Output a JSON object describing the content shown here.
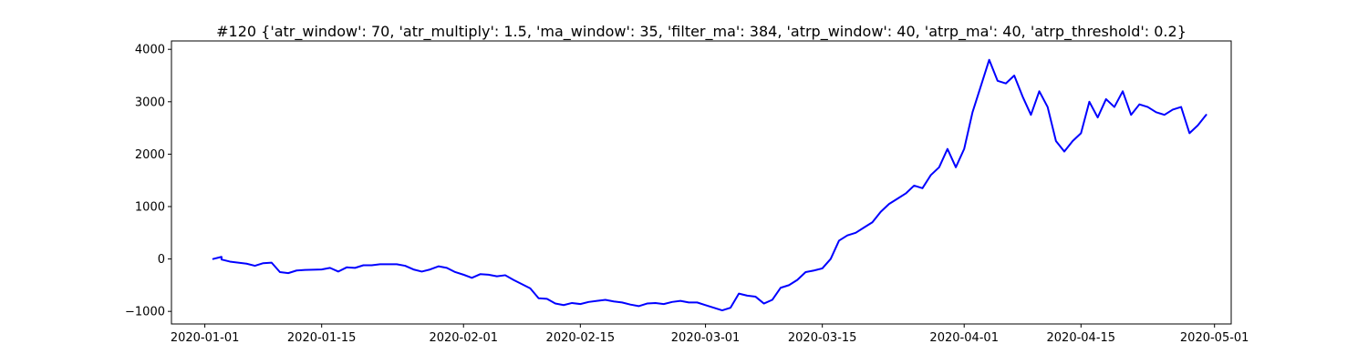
{
  "chart_data": {
    "type": "line",
    "title": "#120 {'atr_window': 70, 'atr_multiply': 1.5, 'ma_window': 35, 'filter_ma': 384, 'atrp_window': 40, 'atrp_ma': 40, 'atrp_threshold': 0.2}",
    "xlabel": "",
    "ylabel": "",
    "x_type": "date",
    "xlim": [
      "2019-12-28",
      "2020-05-03"
    ],
    "ylim": [
      -1240,
      4160
    ],
    "x_ticks": [
      "2020-01-01",
      "2020-01-15",
      "2020-02-01",
      "2020-02-15",
      "2020-03-01",
      "2020-03-15",
      "2020-04-01",
      "2020-04-15",
      "2020-05-01"
    ],
    "y_ticks": [
      -1000,
      0,
      1000,
      2000,
      3000,
      4000
    ],
    "grid": false,
    "legend": "none",
    "line_color": "#0000ff",
    "series": [
      {
        "points": [
          [
            "2020-01-02",
            0
          ],
          [
            "2020-01-03",
            40
          ],
          [
            "2020-01-03",
            -10
          ],
          [
            "2020-01-04",
            -50
          ],
          [
            "2020-01-06",
            -90
          ],
          [
            "2020-01-07",
            -130
          ],
          [
            "2020-01-08",
            -80
          ],
          [
            "2020-01-09",
            -70
          ],
          [
            "2020-01-10",
            -250
          ],
          [
            "2020-01-11",
            -270
          ],
          [
            "2020-01-12",
            -220
          ],
          [
            "2020-01-13",
            -210
          ],
          [
            "2020-01-15",
            -200
          ],
          [
            "2020-01-16",
            -170
          ],
          [
            "2020-01-17",
            -240
          ],
          [
            "2020-01-18",
            -160
          ],
          [
            "2020-01-19",
            -170
          ],
          [
            "2020-01-20",
            -120
          ],
          [
            "2020-01-21",
            -120
          ],
          [
            "2020-01-22",
            -100
          ],
          [
            "2020-01-24",
            -100
          ],
          [
            "2020-01-25",
            -130
          ],
          [
            "2020-01-26",
            -200
          ],
          [
            "2020-01-27",
            -240
          ],
          [
            "2020-01-28",
            -200
          ],
          [
            "2020-01-29",
            -140
          ],
          [
            "2020-01-30",
            -170
          ],
          [
            "2020-01-31",
            -250
          ],
          [
            "2020-02-01",
            -300
          ],
          [
            "2020-02-02",
            -360
          ],
          [
            "2020-02-03",
            -290
          ],
          [
            "2020-02-04",
            -300
          ],
          [
            "2020-02-05",
            -330
          ],
          [
            "2020-02-06",
            -310
          ],
          [
            "2020-02-07",
            -400
          ],
          [
            "2020-02-08",
            -480
          ],
          [
            "2020-02-09",
            -560
          ],
          [
            "2020-02-10",
            -750
          ],
          [
            "2020-02-11",
            -760
          ],
          [
            "2020-02-12",
            -850
          ],
          [
            "2020-02-13",
            -880
          ],
          [
            "2020-02-14",
            -840
          ],
          [
            "2020-02-15",
            -860
          ],
          [
            "2020-02-16",
            -820
          ],
          [
            "2020-02-17",
            -800
          ],
          [
            "2020-02-18",
            -780
          ],
          [
            "2020-02-19",
            -810
          ],
          [
            "2020-02-20",
            -830
          ],
          [
            "2020-02-21",
            -870
          ],
          [
            "2020-02-22",
            -900
          ],
          [
            "2020-02-23",
            -850
          ],
          [
            "2020-02-24",
            -840
          ],
          [
            "2020-02-25",
            -860
          ],
          [
            "2020-02-26",
            -820
          ],
          [
            "2020-02-27",
            -800
          ],
          [
            "2020-02-28",
            -830
          ],
          [
            "2020-02-29",
            -830
          ],
          [
            "2020-03-01",
            -880
          ],
          [
            "2020-03-02",
            -930
          ],
          [
            "2020-03-03",
            -980
          ],
          [
            "2020-03-04",
            -930
          ],
          [
            "2020-03-05",
            -660
          ],
          [
            "2020-03-06",
            -700
          ],
          [
            "2020-03-07",
            -720
          ],
          [
            "2020-03-08",
            -850
          ],
          [
            "2020-03-09",
            -780
          ],
          [
            "2020-03-10",
            -550
          ],
          [
            "2020-03-11",
            -500
          ],
          [
            "2020-03-12",
            -400
          ],
          [
            "2020-03-13",
            -250
          ],
          [
            "2020-03-14",
            -220
          ],
          [
            "2020-03-15",
            -180
          ],
          [
            "2020-03-16",
            0
          ],
          [
            "2020-03-17",
            350
          ],
          [
            "2020-03-18",
            450
          ],
          [
            "2020-03-19",
            500
          ],
          [
            "2020-03-20",
            600
          ],
          [
            "2020-03-21",
            700
          ],
          [
            "2020-03-22",
            900
          ],
          [
            "2020-03-23",
            1050
          ],
          [
            "2020-03-24",
            1150
          ],
          [
            "2020-03-25",
            1250
          ],
          [
            "2020-03-26",
            1400
          ],
          [
            "2020-03-27",
            1350
          ],
          [
            "2020-03-28",
            1600
          ],
          [
            "2020-03-29",
            1750
          ],
          [
            "2020-03-30",
            2100
          ],
          [
            "2020-03-31",
            1750
          ],
          [
            "2020-04-01",
            2100
          ],
          [
            "2020-04-02",
            2800
          ],
          [
            "2020-04-03",
            3300
          ],
          [
            "2020-04-04",
            3800
          ],
          [
            "2020-04-05",
            3400
          ],
          [
            "2020-04-06",
            3350
          ],
          [
            "2020-04-07",
            3500
          ],
          [
            "2020-04-08",
            3100
          ],
          [
            "2020-04-09",
            2750
          ],
          [
            "2020-04-10",
            3200
          ],
          [
            "2020-04-11",
            2900
          ],
          [
            "2020-04-12",
            2250
          ],
          [
            "2020-04-13",
            2050
          ],
          [
            "2020-04-14",
            2250
          ],
          [
            "2020-04-15",
            2400
          ],
          [
            "2020-04-16",
            3000
          ],
          [
            "2020-04-17",
            2700
          ],
          [
            "2020-04-18",
            3050
          ],
          [
            "2020-04-19",
            2900
          ],
          [
            "2020-04-20",
            3200
          ],
          [
            "2020-04-21",
            2750
          ],
          [
            "2020-04-22",
            2950
          ],
          [
            "2020-04-23",
            2900
          ],
          [
            "2020-04-24",
            2800
          ],
          [
            "2020-04-25",
            2750
          ],
          [
            "2020-04-26",
            2850
          ],
          [
            "2020-04-27",
            2900
          ],
          [
            "2020-04-28",
            2400
          ],
          [
            "2020-04-29",
            2550
          ],
          [
            "2020-04-30",
            2750
          ]
        ]
      }
    ]
  }
}
